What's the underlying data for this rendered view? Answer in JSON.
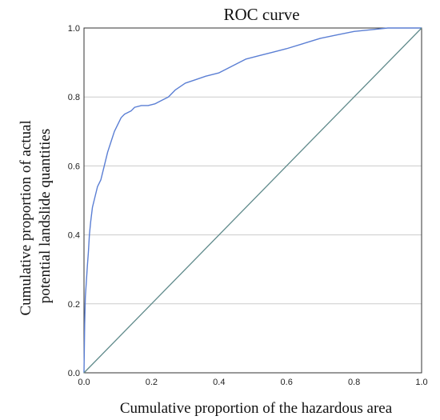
{
  "chart_data": {
    "type": "line",
    "title": "ROC curve",
    "xlabel": "Cumulative proportion of the hazardous area",
    "ylabel_lines": [
      "Cumulative proportion of actual",
      "potential landslide quantities"
    ],
    "xlim": [
      0,
      1
    ],
    "ylim": [
      0,
      1
    ],
    "xticks": [
      0.0,
      0.2,
      0.4,
      0.6,
      0.8,
      1.0
    ],
    "yticks": [
      0.0,
      0.2,
      0.4,
      0.6,
      0.8,
      1.0
    ],
    "xtick_labels": [
      "0.0",
      "0.2",
      "0.4",
      "0.6",
      "0.8",
      "1.0"
    ],
    "ytick_labels": [
      "0.0",
      "0.2",
      "0.4",
      "0.6",
      "0.8",
      "1.0"
    ],
    "grid": "horizontal",
    "series": [
      {
        "color": "#5b7fd4",
        "x": [
          0,
          0.002,
          0.004,
          0.006,
          0.008,
          0.01,
          0.013,
          0.016,
          0.02,
          0.025,
          0.03,
          0.035,
          0.04,
          0.05,
          0.06,
          0.07,
          0.08,
          0.09,
          0.1,
          0.11,
          0.12,
          0.13,
          0.14,
          0.15,
          0.17,
          0.19,
          0.21,
          0.23,
          0.25,
          0.27,
          0.3,
          0.33,
          0.36,
          0.4,
          0.44,
          0.48,
          0.52,
          0.56,
          0.6,
          0.65,
          0.7,
          0.75,
          0.8,
          0.85,
          0.9,
          0.95,
          1.0
        ],
        "y": [
          0,
          0.14,
          0.22,
          0.25,
          0.28,
          0.31,
          0.35,
          0.4,
          0.44,
          0.48,
          0.5,
          0.52,
          0.54,
          0.56,
          0.6,
          0.64,
          0.67,
          0.7,
          0.72,
          0.74,
          0.75,
          0.755,
          0.76,
          0.77,
          0.775,
          0.775,
          0.78,
          0.79,
          0.8,
          0.82,
          0.84,
          0.85,
          0.86,
          0.87,
          0.89,
          0.91,
          0.92,
          0.93,
          0.94,
          0.955,
          0.97,
          0.98,
          0.99,
          0.995,
          1.0,
          1.0,
          1.0
        ]
      },
      {
        "color": "#5f8a8b",
        "x": [
          0,
          1
        ],
        "y": [
          0,
          1
        ]
      }
    ],
    "axis_color": "#333333",
    "grid_color": "#cccccc"
  }
}
